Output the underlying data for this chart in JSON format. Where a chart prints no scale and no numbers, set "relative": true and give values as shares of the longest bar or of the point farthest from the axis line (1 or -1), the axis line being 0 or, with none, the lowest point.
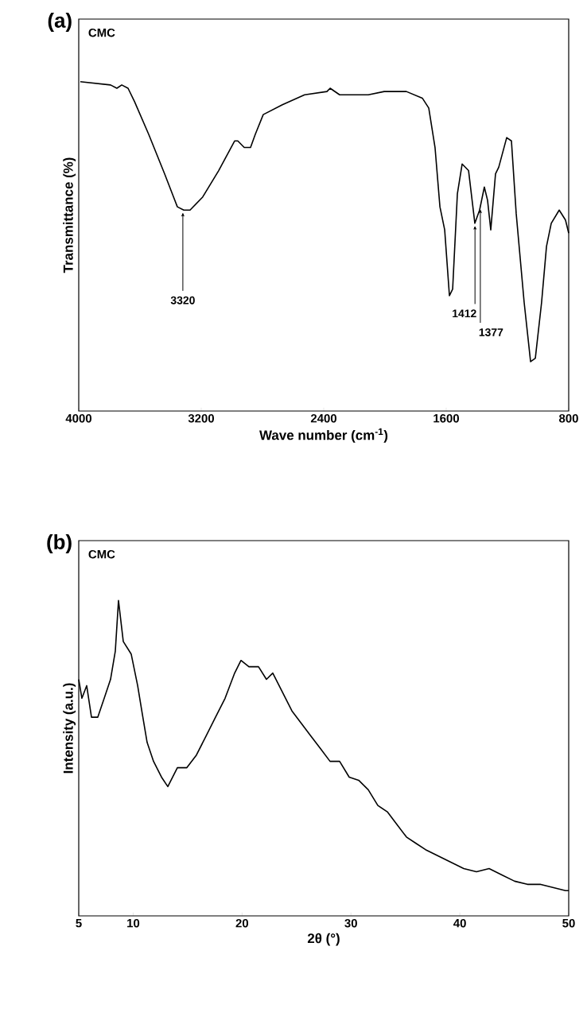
{
  "chart_data": [
    {
      "type": "line",
      "title": "(a)",
      "xlabel": "Wave number (cm$^{-1}$)",
      "ylabel": "Transmittance (%)",
      "relative": true,
      "color": "#000000",
      "xlim": [
        4000,
        800
      ],
      "xticks": [
        4000,
        3200,
        2400,
        1600,
        800
      ],
      "x": [
        3990,
        3792,
        3751,
        3719,
        3678,
        3636,
        3543,
        3439,
        3356,
        3314,
        3273,
        3190,
        3086,
        2982,
        2961,
        2919,
        2878,
        2847,
        2795,
        2670,
        2525,
        2379,
        2358,
        2296,
        2109,
        2005,
        1860,
        1756,
        1714,
        1673,
        1641,
        1610,
        1579,
        1558,
        1527,
        1496,
        1454,
        1413,
        1382,
        1351,
        1330,
        1309,
        1278,
        1257,
        1205,
        1174,
        1143,
        1091,
        1049,
        1018,
        977,
        945,
        914,
        862,
        821,
        800
      ],
      "values": [
        1.0,
        0.99,
        0.98,
        0.99,
        0.98,
        0.94,
        0.84,
        0.72,
        0.62,
        0.61,
        0.61,
        0.65,
        0.73,
        0.82,
        0.82,
        0.8,
        0.8,
        0.84,
        0.9,
        0.93,
        0.96,
        0.97,
        0.98,
        0.96,
        0.96,
        0.97,
        0.97,
        0.95,
        0.92,
        0.8,
        0.62,
        0.55,
        0.35,
        0.37,
        0.66,
        0.75,
        0.73,
        0.57,
        0.61,
        0.68,
        0.64,
        0.55,
        0.72,
        0.74,
        0.83,
        0.82,
        0.6,
        0.33,
        0.15,
        0.16,
        0.33,
        0.5,
        0.57,
        0.61,
        0.58,
        0.54
      ],
      "annotations": [
        "CMC",
        {
          "text": "3320",
          "x": 3320,
          "y": 0.61
        },
        {
          "text": "1412",
          "x": 1412,
          "y": 0.57
        },
        {
          "text": "1377",
          "x": 1377,
          "y": 0.62
        }
      ]
    },
    {
      "type": "line",
      "title": "(b)",
      "xlabel": "2θ (°)",
      "ylabel": "Intensity (a.u.)",
      "relative": true,
      "color": "#000000",
      "xlim": [
        5,
        50
      ],
      "xticks": [
        5,
        10,
        20,
        30,
        40,
        50
      ],
      "x": [
        5,
        5.29,
        5.73,
        6.17,
        6.75,
        7.34,
        7.92,
        8.36,
        8.65,
        9.09,
        9.82,
        10.41,
        10.84,
        11.28,
        11.87,
        12.6,
        13.18,
        14.06,
        14.93,
        15.81,
        16.69,
        17.56,
        18.44,
        19.32,
        19.9,
        20.63,
        21.51,
        22.24,
        22.82,
        23.7,
        24.58,
        25.45,
        26.33,
        27.21,
        28.08,
        28.96,
        29.84,
        30.71,
        31.59,
        32.47,
        33.34,
        34.22,
        35.1,
        35.97,
        36.85,
        38.02,
        39.19,
        40.36,
        41.53,
        42.69,
        43.86,
        45.03,
        46.2,
        47.37,
        48.54,
        49.71,
        50
      ],
      "values": [
        0.75,
        0.69,
        0.73,
        0.63,
        0.63,
        0.69,
        0.75,
        0.84,
        1.0,
        0.87,
        0.83,
        0.73,
        0.64,
        0.55,
        0.49,
        0.44,
        0.41,
        0.47,
        0.47,
        0.51,
        0.57,
        0.63,
        0.69,
        0.77,
        0.81,
        0.79,
        0.79,
        0.75,
        0.77,
        0.71,
        0.65,
        0.61,
        0.57,
        0.53,
        0.49,
        0.49,
        0.44,
        0.43,
        0.4,
        0.35,
        0.33,
        0.29,
        0.25,
        0.23,
        0.21,
        0.19,
        0.17,
        0.15,
        0.14,
        0.15,
        0.13,
        0.11,
        0.1,
        0.1,
        0.09,
        0.08,
        0.08
      ],
      "annotations": [
        "CMC"
      ]
    }
  ]
}
